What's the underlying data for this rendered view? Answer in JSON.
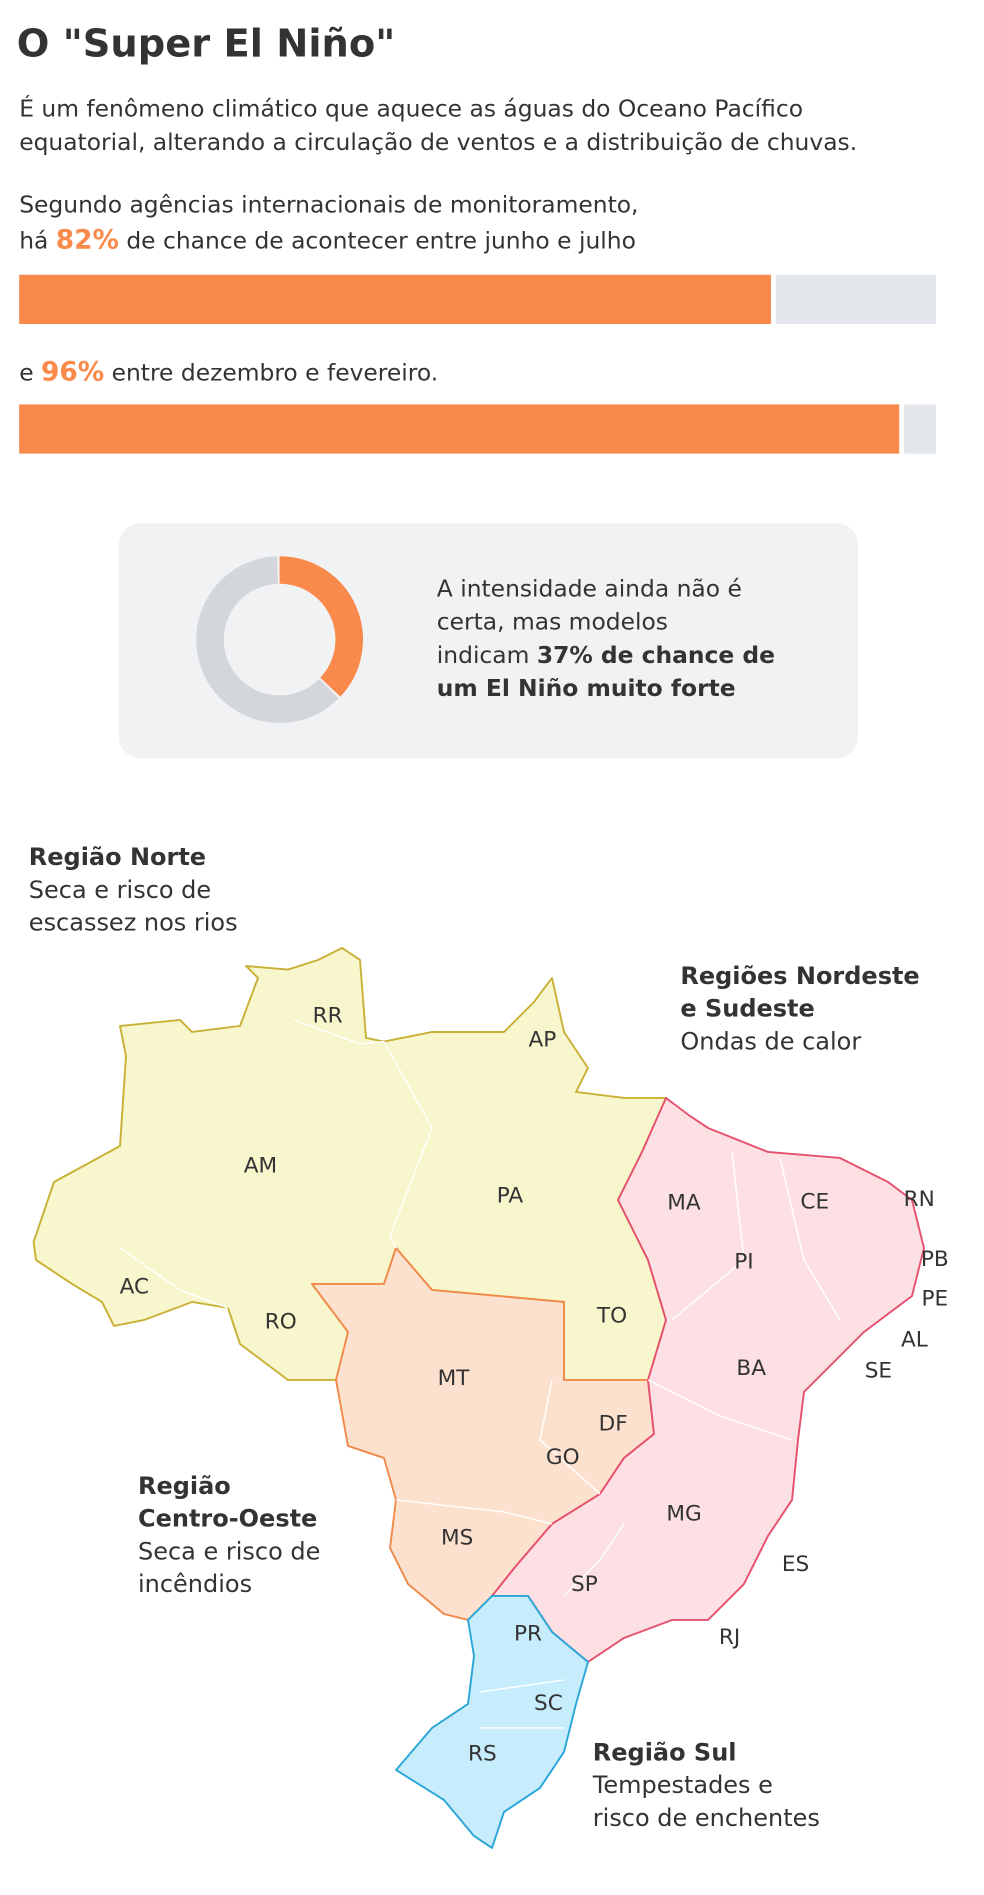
{
  "title": "O \"Super El Niño\"",
  "intro": [
    "É um fenômeno climático que aquece as águas do Oceano Pacífico",
    "equatorial, alterando a circulação de ventos e a distribuição de chuvas."
  ],
  "scale": [
    0,
    100
  ],
  "colors": {
    "value": "#f98a4b",
    "track": "#e3e6ea",
    "donut_track": "#d3d7db"
  },
  "bars": [
    {
      "lead": "Segundo agências internacionais de monitoramento,",
      "before": "há ",
      "value": 82,
      "value_label": "82%",
      "after": " de chance de acontecer entre junho e julho"
    },
    {
      "before": "e ",
      "value": 96,
      "value_label": "96%",
      "after": " entre dezembro e fevereiro."
    }
  ],
  "donut": {
    "value": 37,
    "text_lines": [
      "A intensidade ainda não é",
      "certa, mas modelos",
      "indicam "
    ],
    "bold_lines": [
      "37% de chance de",
      "um El Niño muito forte"
    ]
  },
  "map": {
    "regions": [
      {
        "title_lines": [
          "Região Norte"
        ],
        "desc_lines": [
          "Seca e risco de",
          "escassez nos rios"
        ],
        "color": "#c3a92e"
      },
      {
        "title_lines": [
          "Regiões Nordeste",
          "e Sudeste"
        ],
        "desc_lines": [
          "Ondas de calor"
        ],
        "color": "#e5516e"
      },
      {
        "title_lines": [
          "Região",
          "Centro-Oeste"
        ],
        "desc_lines": [
          "Seca e risco de",
          "incêndios"
        ],
        "color": "#f08a4b"
      },
      {
        "title_lines": [
          "Região Sul"
        ],
        "desc_lines": [
          "Tempestades e",
          "risco de enchentes"
        ],
        "color": "#2aa6d9"
      }
    ],
    "states": [
      "RR",
      "AP",
      "AM",
      "PA",
      "AC",
      "RO",
      "TO",
      "MT",
      "DF",
      "GO",
      "MS",
      "MA",
      "CE",
      "RN",
      "PI",
      "PB",
      "PE",
      "AL",
      "SE",
      "BA",
      "MG",
      "ES",
      "SP",
      "RJ",
      "PR",
      "SC",
      "RS"
    ]
  }
}
